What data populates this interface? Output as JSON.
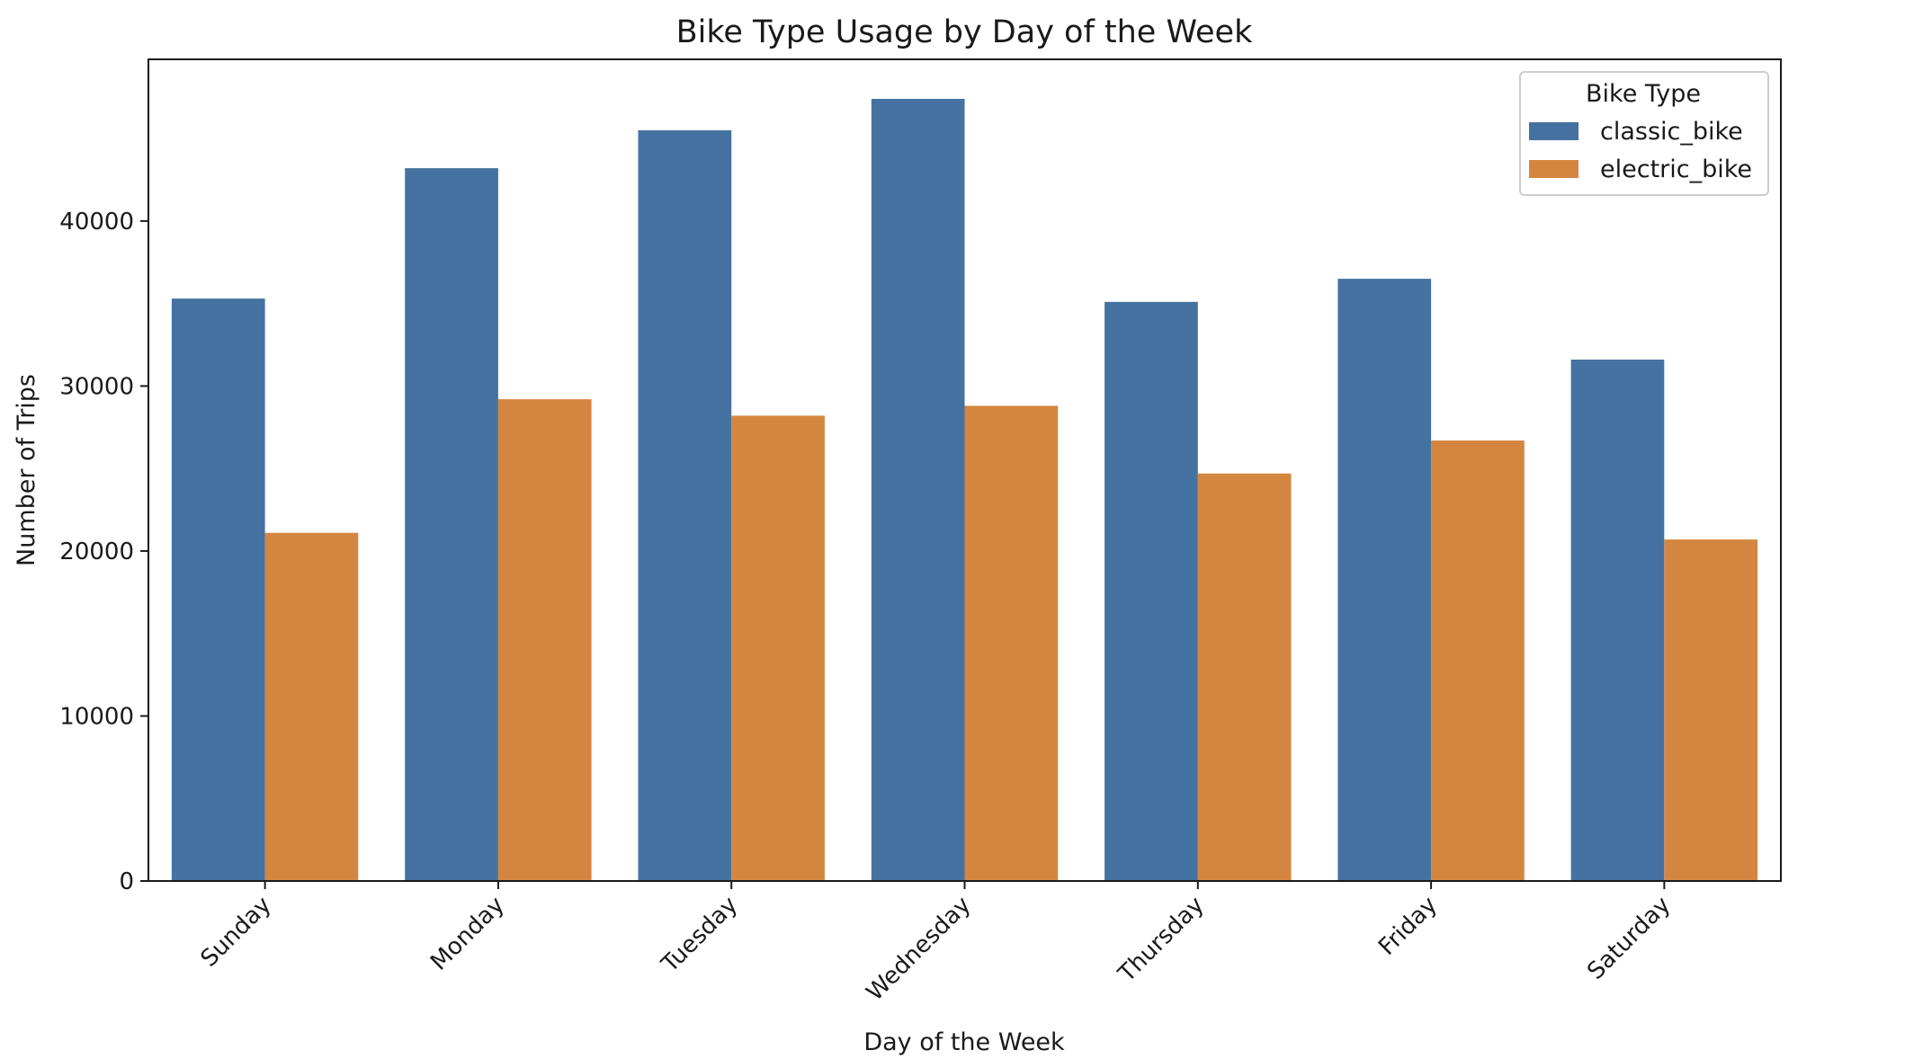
{
  "chart_data": {
    "type": "bar",
    "title": "Bike Type Usage by Day of the Week",
    "xlabel": "Day of the Week",
    "ylabel": "Number of Trips",
    "categories": [
      "Sunday",
      "Monday",
      "Tuesday",
      "Wednesday",
      "Thursday",
      "Friday",
      "Saturday"
    ],
    "series": [
      {
        "name": "classic_bike",
        "color": "#4572a0",
        "values": [
          35300,
          43200,
          45500,
          47400,
          35100,
          36500,
          31600
        ]
      },
      {
        "name": "electric_bike",
        "color": "#d48640",
        "values": [
          21100,
          29200,
          28200,
          28800,
          24700,
          26700,
          20700
        ]
      }
    ],
    "ylim": [
      0,
      49800
    ],
    "yticks": [
      0,
      10000,
      20000,
      30000,
      40000
    ],
    "legend": {
      "title": "Bike Type",
      "position": "upper right"
    },
    "grid": false
  }
}
